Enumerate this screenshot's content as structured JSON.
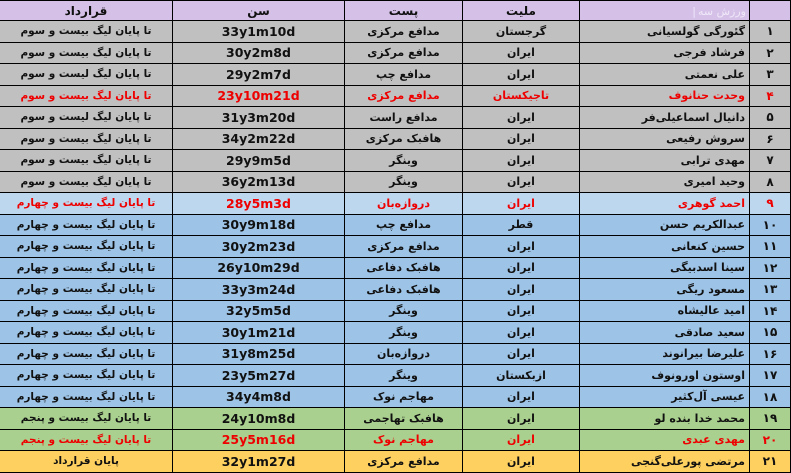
{
  "header": {
    "watermark": "ورزش سه",
    "watermark_bar": "|"
  },
  "colors": {
    "header_bg": "#d5c0e8",
    "watermark_text": "#efe8f8",
    "gray": "#c0c0c0",
    "blue_light": "#bdd7ee",
    "blue": "#9dc3e6",
    "green": "#a9d08e",
    "yellow": "#fdd05f",
    "highlight_text": "#ee0000"
  },
  "chart_data": {
    "type": "table",
    "title": "",
    "columns": [
      {
        "key": "num",
        "label": ""
      },
      {
        "key": "name",
        "label": ""
      },
      {
        "key": "nationality",
        "label": "ملیت"
      },
      {
        "key": "position",
        "label": "پست"
      },
      {
        "key": "age",
        "label": "سن"
      },
      {
        "key": "contract",
        "label": "قرارداد"
      }
    ],
    "rows": [
      {
        "num": "۱",
        "name": "گئورگی گولسیانی",
        "nationality": "گرجستان",
        "position": "مدافع مرکزی",
        "age": "33y1m10d",
        "contract": "تا پایان لیگ بیست و سوم",
        "bg": "gray",
        "red": false
      },
      {
        "num": "۲",
        "name": "فرشاد فرجی",
        "nationality": "ایران",
        "position": "مدافع مرکزی",
        "age": "30y2m8d",
        "contract": "تا پایان لیگ بیست و سوم",
        "bg": "gray",
        "red": false
      },
      {
        "num": "۳",
        "name": "علی نعمتی",
        "nationality": "ایران",
        "position": "مدافع چپ",
        "age": "29y2m7d",
        "contract": "تا پایان لیگ لیست و سوم",
        "bg": "gray",
        "red": false
      },
      {
        "num": "۴",
        "name": "وحدت حنانوف",
        "nationality": "تاجیکستان",
        "position": "مدافع مرکزی",
        "age": "23y10m21d",
        "contract": "تا پایان لیگ بیست و سوم",
        "bg": "gray",
        "red": true
      },
      {
        "num": "۵",
        "name": "دانیال اسماعیلی‌فر",
        "nationality": "ایران",
        "position": "مدافع راست",
        "age": "31y3m20d",
        "contract": "تا پایان لیگ لیست و سوم",
        "bg": "gray",
        "red": false
      },
      {
        "num": "۶",
        "name": "سروش رفیعی",
        "nationality": "ایران",
        "position": "هافبک مرکزی",
        "age": "34y2m22d",
        "contract": "تا پایان لیگ بیست و سوم",
        "bg": "gray",
        "red": false
      },
      {
        "num": "۷",
        "name": "مهدی ترابی",
        "nationality": "ایران",
        "position": "وینگر",
        "age": "29y9m5d",
        "contract": "تا پایان لیگ بیست و سوم",
        "bg": "gray",
        "red": false
      },
      {
        "num": "۸",
        "name": "وحید امیری",
        "nationality": "ایران",
        "position": "وینگر",
        "age": "36y2m13d",
        "contract": "تا پایان لیگ بیست و سوم",
        "bg": "gray",
        "red": false
      },
      {
        "num": "۹",
        "name": "احمد گوهری",
        "nationality": "ایران",
        "position": "دروازه‌بان",
        "age": "28y5m3d",
        "contract": "تا پایان لیگ بیست و چهارم",
        "bg": "blue_light",
        "red": true
      },
      {
        "num": "۱۰",
        "name": "عبدالکریم حسن",
        "nationality": "قطر",
        "position": "مدافع چپ",
        "age": "30y9m18d",
        "contract": "تا پایان لیگ بیست و چهارم",
        "bg": "blue",
        "red": false
      },
      {
        "num": "۱۱",
        "name": "حسین کنعانی",
        "nationality": "ایران",
        "position": "مدافع مرکزی",
        "age": "30y2m23d",
        "contract": "تا پایان لیگ بیست و چهارم",
        "bg": "blue",
        "red": false
      },
      {
        "num": "۱۲",
        "name": "سینا اسدبیگی",
        "nationality": "ایران",
        "position": "هافبک دفاعی",
        "age": "26y10m29d",
        "contract": "تا پایان لیگ بیست و چهارم",
        "bg": "blue",
        "red": false
      },
      {
        "num": "۱۳",
        "name": "مسعود ریگی",
        "nationality": "ایران",
        "position": "هافبک دفاعی",
        "age": "33y3m24d",
        "contract": "تا پایان لیگ بیست و چهارم",
        "bg": "blue",
        "red": false
      },
      {
        "num": "۱۴",
        "name": "امید عالیشاه",
        "nationality": "ایران",
        "position": "وینگر",
        "age": "32y5m5d",
        "contract": "تا پایان لیگ بیست و چهارم",
        "bg": "blue",
        "red": false
      },
      {
        "num": "۱۵",
        "name": "سعید صادقی",
        "nationality": "ایران",
        "position": "وینگر",
        "age": "30y1m21d",
        "contract": "تا پایان لیگ بیست و چهارم",
        "bg": "blue",
        "red": false
      },
      {
        "num": "۱۶",
        "name": "علیرضا بیرانوند",
        "nationality": "ایران",
        "position": "دروازه‌بان",
        "age": "31y8m25d",
        "contract": "تا پایان لیگ بیست و چهارم",
        "bg": "blue",
        "red": false
      },
      {
        "num": "۱۷",
        "name": "اوستون اورونوف",
        "nationality": "ازبکستان",
        "position": "وینگر",
        "age": "23y5m27d",
        "contract": "تا پایان لیگ بیست و چهارم",
        "bg": "blue",
        "red": false
      },
      {
        "num": "۱۸",
        "name": "عیسی آل‌کثیر",
        "nationality": "ایران",
        "position": "مهاجم نوک",
        "age": "34y4m8d",
        "contract": "تا پایان لیگ بیست و چهارم",
        "bg": "blue",
        "red": false
      },
      {
        "num": "۱۹",
        "name": "محمد خدا بنده لو",
        "nationality": "ایران",
        "position": "هافبک تهاجمی",
        "age": "24y10m8d",
        "contract": "تا پایان لیگ بیست و پنجم",
        "bg": "green",
        "red": false
      },
      {
        "num": "۲۰",
        "name": "مهدی عبدی",
        "nationality": "ایران",
        "position": "مهاجم نوک",
        "age": "25y5m16d",
        "contract": "تا پایان لیگ بیست و پنجم",
        "bg": "green",
        "red": true
      },
      {
        "num": "۲۱",
        "name": "مرتضی پورعلی‌گنجی",
        "nationality": "ایران",
        "position": "مدافع مرکزی",
        "age": "32y1m27d",
        "contract": "پایان قرارداد",
        "bg": "yellow",
        "red": false
      }
    ]
  }
}
